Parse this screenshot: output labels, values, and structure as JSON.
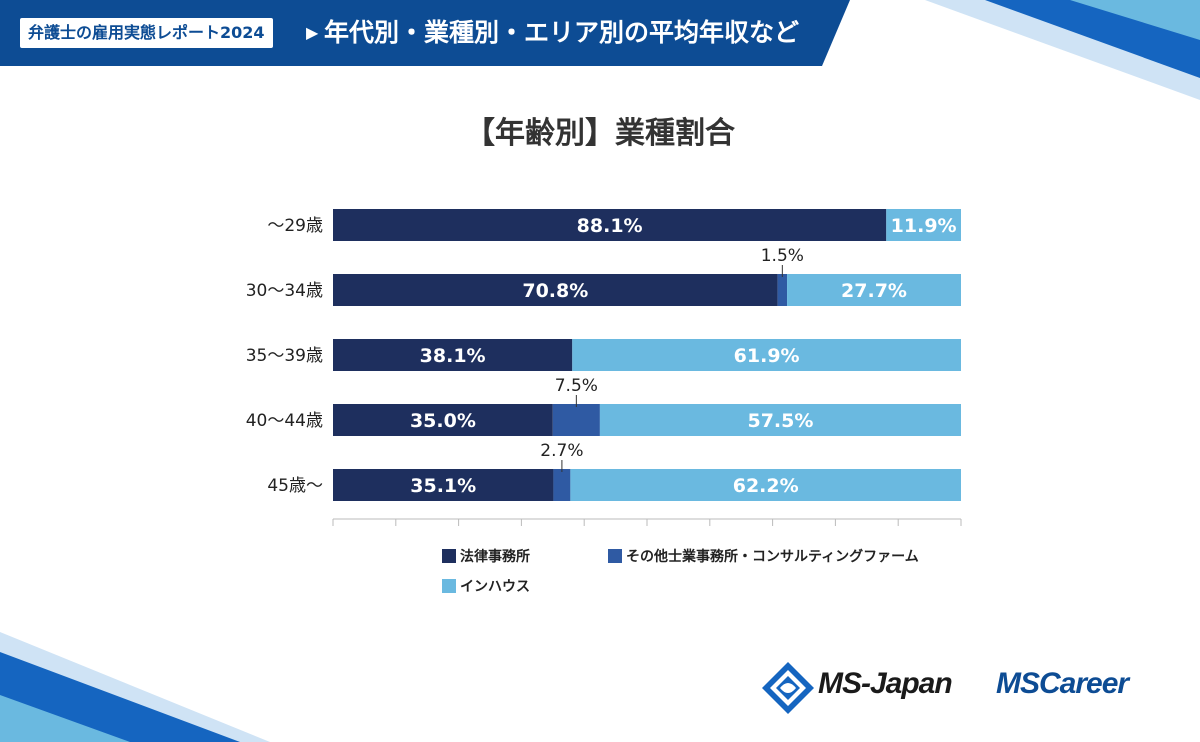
{
  "header": {
    "tag": "弁護士の雇用実態レポート2024",
    "arrow": "▶",
    "title": "年代別・業種別・エリア別の平均年収など"
  },
  "colors": {
    "banner": "#0d4c94",
    "law_firm": "#1e2f5e",
    "other_firm": "#2f5aa3",
    "in_house": "#6ab9e0",
    "axis": "#bbbbbb"
  },
  "chart_data": {
    "type": "bar",
    "orientation": "horizontal",
    "stacked": true,
    "title": "【年齢別】業種割合",
    "categories": [
      "〜29歳",
      "30〜34歳",
      "35〜39歳",
      "40〜44歳",
      "45歳〜"
    ],
    "series": [
      {
        "name": "法律事務所",
        "values": [
          88.1,
          70.8,
          38.1,
          35.0,
          35.1
        ]
      },
      {
        "name": "その他士業事務所・コンサルティングファーム",
        "values": [
          0,
          1.5,
          0,
          7.5,
          2.7
        ]
      },
      {
        "name": "インハウス",
        "values": [
          11.9,
          27.7,
          61.9,
          57.5,
          62.2
        ]
      }
    ],
    "value_labels": [
      [
        "88.1%",
        "",
        "11.9%"
      ],
      [
        "70.8%",
        "1.5%",
        "27.7%"
      ],
      [
        "38.1%",
        "",
        "61.9%"
      ],
      [
        "35.0%",
        "7.5%",
        "57.5%"
      ],
      [
        "35.1%",
        "2.7%",
        "62.2%"
      ]
    ],
    "xlim": [
      0,
      100
    ],
    "xlabel": "",
    "ylabel": "",
    "legend_position": "bottom"
  },
  "logos": {
    "ms_japan": "MS-Japan",
    "ms_career": "MSCareer"
  }
}
